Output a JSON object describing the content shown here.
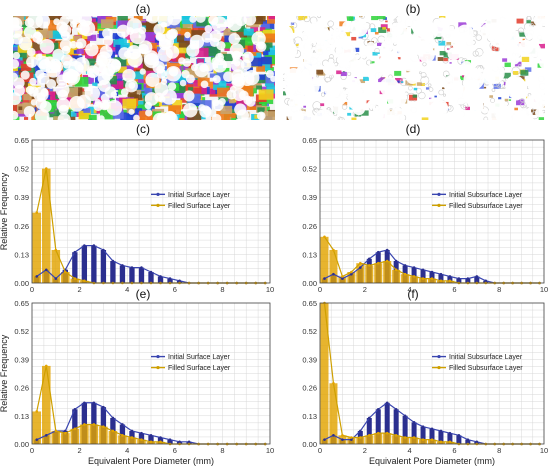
{
  "panel_letters": [
    "(a)",
    "(b)",
    "(c)",
    "(d)",
    "(e)",
    "(f)"
  ],
  "colors": {
    "initial": "#2b2f8f",
    "initial_line": "#3a46b0",
    "filled": "#e2a400",
    "filled_line": "#cfa000",
    "accent_pink": "#e4559a",
    "grid": "#d8d8d8",
    "axis": "#444444"
  },
  "chart_data": [
    {
      "panel": "(c)",
      "type": "bar",
      "xlabel": "",
      "ylabel": "Relative Frequency",
      "xlim": [
        0,
        10
      ],
      "ylim": [
        0,
        0.65
      ],
      "xticks": [
        "0",
        "2",
        "4",
        "6",
        "8",
        "10"
      ],
      "yticks": [
        "0.00",
        "0.13",
        "0.26",
        "0.39",
        "0.52",
        "0.65"
      ],
      "legend_position": "center-right",
      "bin_width": 0.4,
      "x": [
        0.2,
        0.6,
        1.0,
        1.4,
        1.8,
        2.2,
        2.6,
        3.0,
        3.4,
        3.8,
        4.2,
        4.6,
        5.0,
        5.4,
        5.8,
        6.2,
        6.6,
        7.0,
        7.4,
        7.8,
        8.2,
        8.6,
        9.0,
        9.4,
        9.8
      ],
      "series": [
        {
          "name": "Initial Surface Layer",
          "values": [
            0.03,
            0.06,
            0.02,
            0.06,
            0.14,
            0.17,
            0.17,
            0.15,
            0.1,
            0.08,
            0.07,
            0.07,
            0.05,
            0.03,
            0.02,
            0.01,
            0,
            0,
            0,
            0,
            0,
            0,
            0,
            0,
            0
          ]
        },
        {
          "name": "Filled Surface Layer",
          "values": [
            0.32,
            0.52,
            0.15,
            0.05,
            0.02,
            0.01,
            0,
            0,
            0,
            0,
            0,
            0,
            0,
            0,
            0,
            0,
            0,
            0,
            0,
            0,
            0,
            0,
            0,
            0,
            0
          ]
        }
      ]
    },
    {
      "panel": "(d)",
      "type": "bar",
      "xlabel": "",
      "ylabel": "",
      "xlim": [
        0,
        10
      ],
      "ylim": [
        0,
        0.65
      ],
      "xticks": [
        "0",
        "2",
        "4",
        "6",
        "8",
        "10"
      ],
      "yticks": [
        "0.00",
        "0.13",
        "0.26",
        "0.39",
        "0.52",
        "0.65"
      ],
      "legend_position": "center-right",
      "bin_width": 0.4,
      "x": [
        0.2,
        0.6,
        1.0,
        1.4,
        1.8,
        2.2,
        2.6,
        3.0,
        3.4,
        3.8,
        4.2,
        4.6,
        5.0,
        5.4,
        5.8,
        6.2,
        6.6,
        7.0,
        7.4,
        7.8,
        8.2,
        8.6,
        9.0,
        9.4,
        9.8
      ],
      "series": [
        {
          "name": "Initial Subsurface Layer",
          "values": [
            0.02,
            0.04,
            0.02,
            0.04,
            0.07,
            0.11,
            0.14,
            0.15,
            0.1,
            0.08,
            0.07,
            0.06,
            0.05,
            0.04,
            0.03,
            0.02,
            0.02,
            0.03,
            0.01,
            0,
            0,
            0,
            0,
            0,
            0
          ]
        },
        {
          "name": "Filled Subsurface Layer",
          "values": [
            0.21,
            0.15,
            0.03,
            0.05,
            0.09,
            0.08,
            0.09,
            0.1,
            0.06,
            0.04,
            0.03,
            0.02,
            0.02,
            0.01,
            0.01,
            0,
            0,
            0,
            0,
            0,
            0,
            0,
            0,
            0,
            0
          ]
        }
      ]
    },
    {
      "panel": "(e)",
      "type": "bar",
      "xlabel": "Equivalent Pore Diameter (mm)",
      "ylabel": "Relative Frequency",
      "xlim": [
        0,
        10
      ],
      "ylim": [
        0,
        0.65
      ],
      "xticks": [
        "0",
        "2",
        "4",
        "6",
        "8",
        "10"
      ],
      "yticks": [
        "0.00",
        "0.13",
        "0.26",
        "0.39",
        "0.52",
        "0.65"
      ],
      "legend_position": "center-right",
      "bin_width": 0.4,
      "x": [
        0.2,
        0.6,
        1.0,
        1.4,
        1.8,
        2.2,
        2.6,
        3.0,
        3.4,
        3.8,
        4.2,
        4.6,
        5.0,
        5.4,
        5.8,
        6.2,
        6.6,
        7.0,
        7.4,
        7.8,
        8.2,
        8.6,
        9.0,
        9.4,
        9.8
      ],
      "series": [
        {
          "name": "Initial Surface Layer",
          "values": [
            0.02,
            0.04,
            0.06,
            0.06,
            0.16,
            0.19,
            0.19,
            0.17,
            0.12,
            0.09,
            0.06,
            0.05,
            0.04,
            0.03,
            0.02,
            0.01,
            0.01,
            0,
            0,
            0,
            0,
            0,
            0,
            0,
            0
          ]
        },
        {
          "name": "Filled Surface Layer",
          "values": [
            0.15,
            0.36,
            0.06,
            0.05,
            0.07,
            0.09,
            0.09,
            0.08,
            0.06,
            0.04,
            0.03,
            0.02,
            0.01,
            0.01,
            0,
            0,
            0,
            0,
            0,
            0,
            0,
            0,
            0,
            0,
            0
          ]
        }
      ]
    },
    {
      "panel": "(f)",
      "type": "bar",
      "xlabel": "Equivalent Pore Diameter (mm)",
      "ylabel": "",
      "xlim": [
        0,
        10
      ],
      "ylim": [
        0,
        0.65
      ],
      "xticks": [
        "0",
        "2",
        "4",
        "6",
        "8",
        "10"
      ],
      "yticks": [
        "0.00",
        "0.13",
        "0.26",
        "0.39",
        "0.52",
        "0.65"
      ],
      "legend_position": "center-right",
      "bin_width": 0.4,
      "x": [
        0.2,
        0.6,
        1.0,
        1.4,
        1.8,
        2.2,
        2.6,
        3.0,
        3.4,
        3.8,
        4.2,
        4.6,
        5.0,
        5.4,
        5.8,
        6.2,
        6.6,
        7.0,
        7.4,
        7.8,
        8.2,
        8.6,
        9.0,
        9.4,
        9.8
      ],
      "series": [
        {
          "name": "Initial Subsurface Layer",
          "values": [
            0.02,
            0.04,
            0.02,
            0.02,
            0.06,
            0.12,
            0.16,
            0.19,
            0.16,
            0.13,
            0.1,
            0.08,
            0.07,
            0.06,
            0.05,
            0.04,
            0.02,
            0.01,
            0,
            0,
            0,
            0,
            0,
            0,
            0
          ]
        },
        {
          "name": "Filled Subsurface Layer",
          "values": [
            0.65,
            0.28,
            0.04,
            0.03,
            0.03,
            0.04,
            0.05,
            0.05,
            0.04,
            0.03,
            0.03,
            0.02,
            0.02,
            0.01,
            0.01,
            0,
            0,
            0,
            0,
            0,
            0,
            0,
            0,
            0,
            0
          ]
        }
      ]
    }
  ]
}
